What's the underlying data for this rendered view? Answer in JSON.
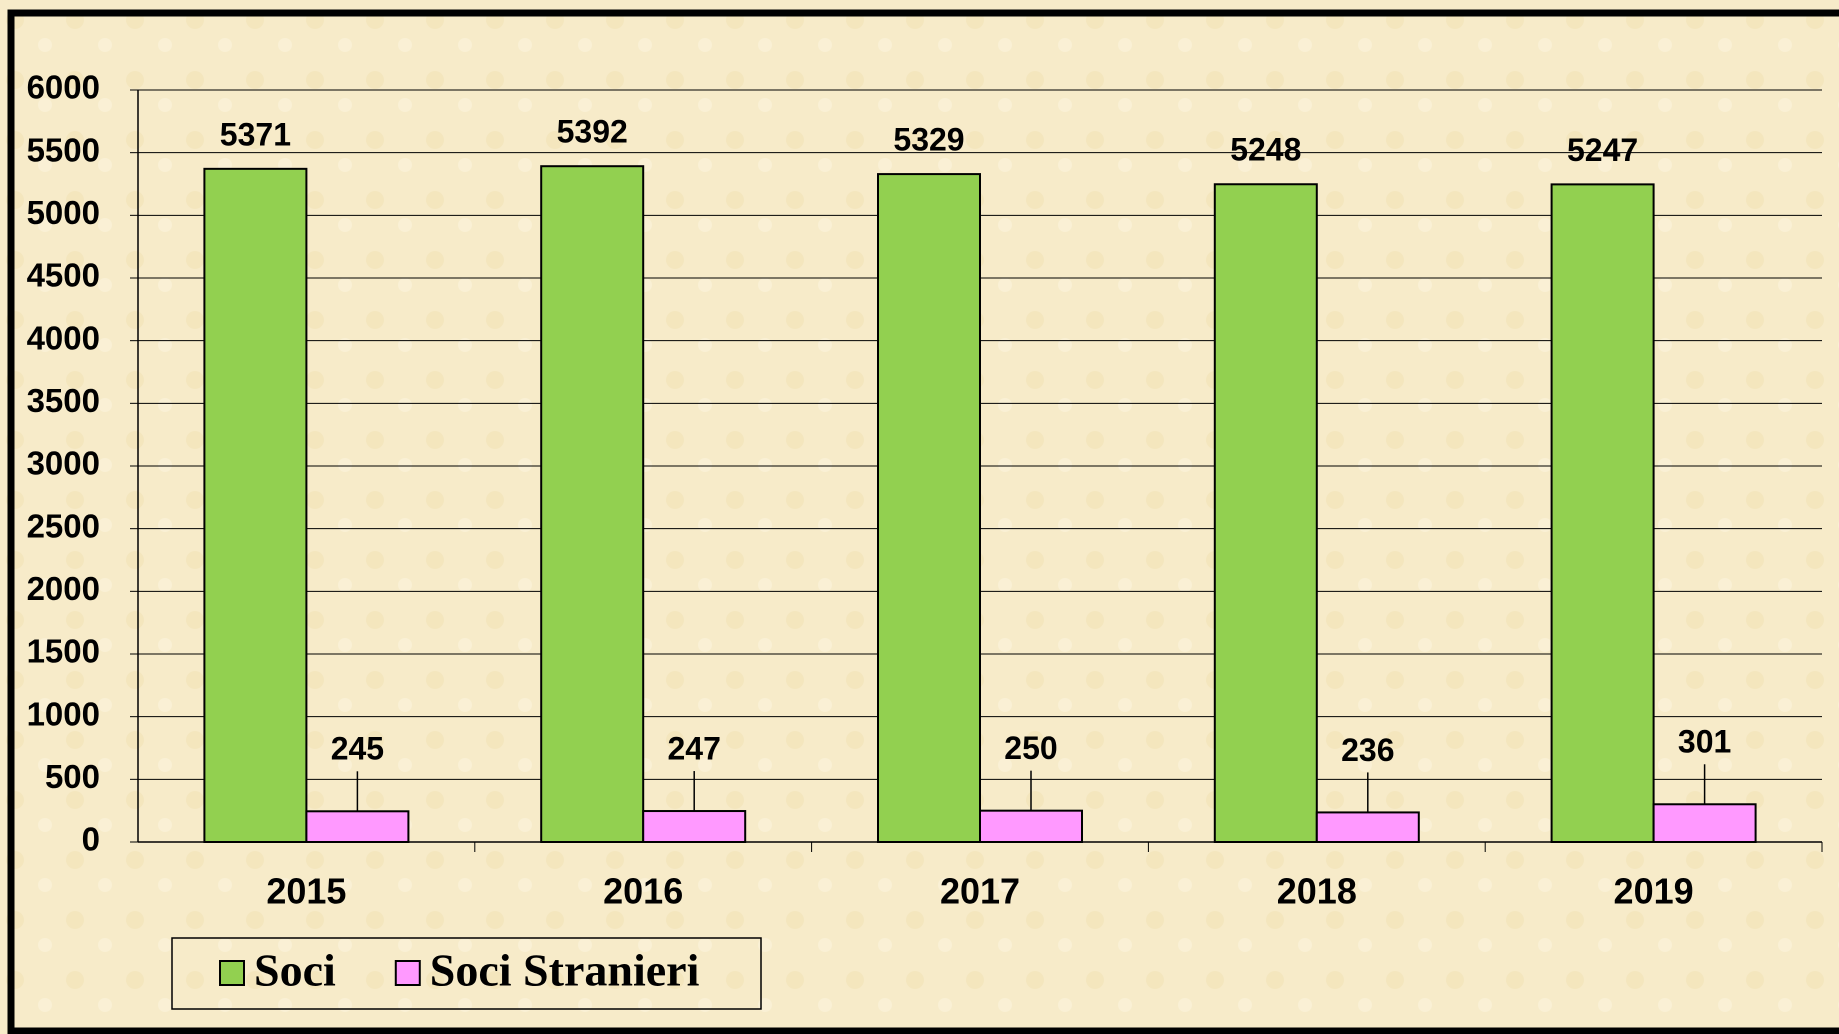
{
  "chart_data": {
    "type": "bar",
    "categories": [
      "2015",
      "2016",
      "2017",
      "2018",
      "2019"
    ],
    "series": [
      {
        "name": "Soci",
        "color": "#92d050",
        "values": [
          5371,
          5392,
          5329,
          5248,
          5247
        ]
      },
      {
        "name": "Soci Stranieri",
        "color": "#ff99ff",
        "values": [
          245,
          247,
          250,
          236,
          301
        ]
      }
    ],
    "ylim": [
      0,
      6000
    ],
    "yticks": [
      0,
      500,
      1000,
      1500,
      2000,
      2500,
      3000,
      3500,
      4000,
      4500,
      5000,
      5500,
      6000
    ],
    "grid": true,
    "legend": "bottom-left"
  }
}
